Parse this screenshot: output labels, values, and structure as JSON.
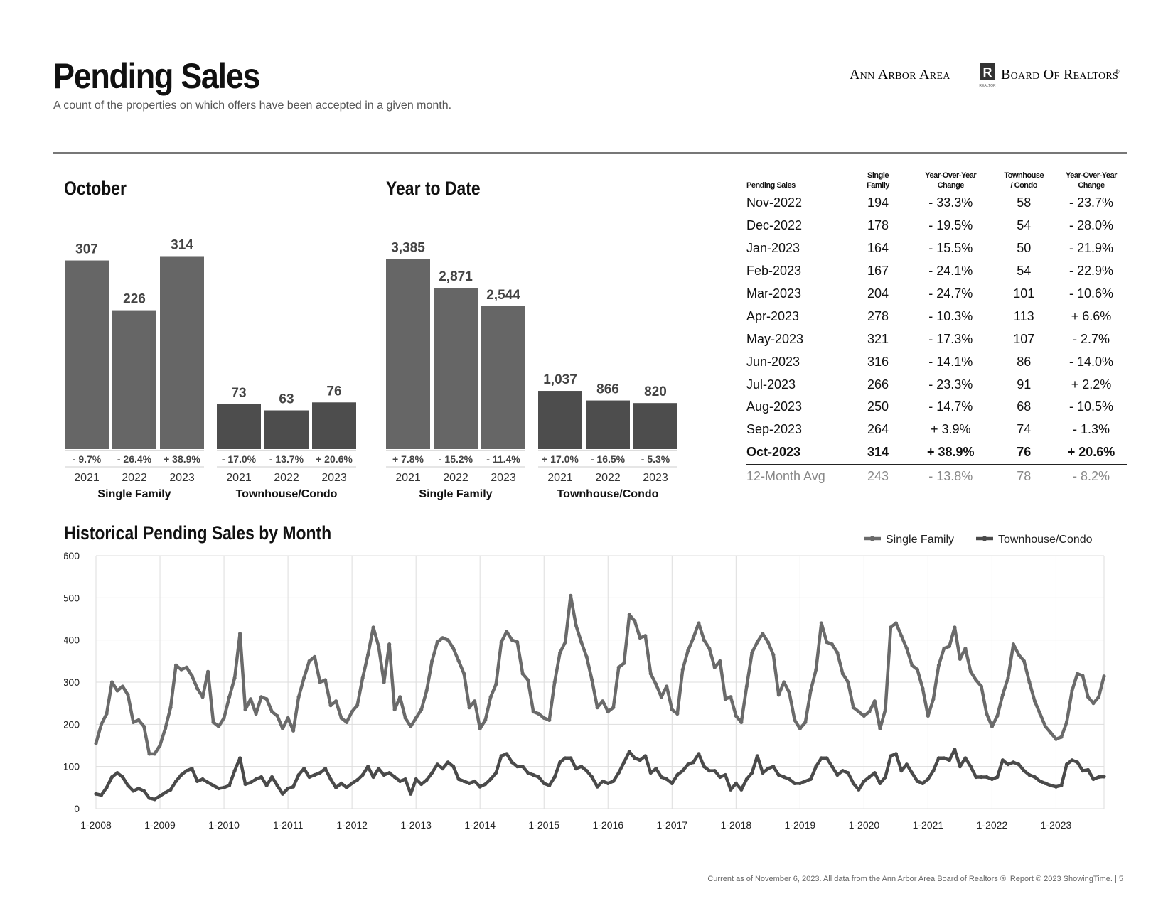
{
  "header": {
    "title": "Pending Sales",
    "subtitle": "A count of the properties on which offers have been accepted in a given month.",
    "logo_left": "Ann Arbor Area",
    "logo_right": "Board Of Realtors",
    "logo_reg": "®",
    "logo_mark": "R",
    "logo_mark_sub": "REALTOR"
  },
  "sections": {
    "october": "October",
    "ytd": "Year to Date",
    "historical": "Historical Pending Sales by Month"
  },
  "table": {
    "headers": {
      "c0": "Pending Sales",
      "c1a": "Single",
      "c1b": "Family",
      "c2a": "Year-Over-Year",
      "c2b": "Change",
      "c3a": "Townhouse",
      "c3b": "/ Condo",
      "c4a": "Year-Over-Year",
      "c4b": "Change"
    },
    "rows": [
      {
        "m": "Nov-2022",
        "sf": "194",
        "sfc": "- 33.3%",
        "tc": "58",
        "tcc": "- 23.7%"
      },
      {
        "m": "Dec-2022",
        "sf": "178",
        "sfc": "- 19.5%",
        "tc": "54",
        "tcc": "- 28.0%"
      },
      {
        "m": "Jan-2023",
        "sf": "164",
        "sfc": "- 15.5%",
        "tc": "50",
        "tcc": "- 21.9%"
      },
      {
        "m": "Feb-2023",
        "sf": "167",
        "sfc": "- 24.1%",
        "tc": "54",
        "tcc": "- 22.9%"
      },
      {
        "m": "Mar-2023",
        "sf": "204",
        "sfc": "- 24.7%",
        "tc": "101",
        "tcc": "- 10.6%"
      },
      {
        "m": "Apr-2023",
        "sf": "278",
        "sfc": "- 10.3%",
        "tc": "113",
        "tcc": "+ 6.6%"
      },
      {
        "m": "May-2023",
        "sf": "321",
        "sfc": "- 17.3%",
        "tc": "107",
        "tcc": "- 2.7%"
      },
      {
        "m": "Jun-2023",
        "sf": "316",
        "sfc": "- 14.1%",
        "tc": "86",
        "tcc": "- 14.0%"
      },
      {
        "m": "Jul-2023",
        "sf": "266",
        "sfc": "- 23.3%",
        "tc": "91",
        "tcc": "+ 2.2%"
      },
      {
        "m": "Aug-2023",
        "sf": "250",
        "sfc": "- 14.7%",
        "tc": "68",
        "tcc": "- 10.5%"
      },
      {
        "m": "Sep-2023",
        "sf": "264",
        "sfc": "+ 3.9%",
        "tc": "74",
        "tcc": "- 1.3%"
      },
      {
        "m": "Oct-2023",
        "sf": "314",
        "sfc": "+ 38.9%",
        "tc": "76",
        "tcc": "+ 20.6%"
      }
    ],
    "avg": {
      "m": "12-Month Avg",
      "sf": "243",
      "sfc": "- 13.8%",
      "tc": "78",
      "tcc": "- 8.2%"
    }
  },
  "footer": "Current as of November 6, 2023. All data from the Ann Arbor Area Board of Realtors ®| Report © 2023 ShowingTime.  |  5",
  "colors": {
    "sf_bar": "#666666",
    "tc_bar": "#4d4d4d",
    "line_sf": "#6a6a6a",
    "line_tc": "#4a4a4a",
    "grid": "#dddddd"
  },
  "chart_data": [
    {
      "type": "bar",
      "title": "October",
      "ylim": [
        0,
        340
      ],
      "groups": [
        {
          "name": "Single Family",
          "categories": [
            "2021",
            "2022",
            "2023"
          ],
          "values": [
            307,
            226,
            314
          ],
          "labels": [
            "307",
            "226",
            "314"
          ],
          "changes": [
            "- 9.7%",
            "- 26.4%",
            "+ 38.9%"
          ]
        },
        {
          "name": "Townhouse/Condo",
          "categories": [
            "2021",
            "2022",
            "2023"
          ],
          "values": [
            73,
            63,
            76
          ],
          "labels": [
            "73",
            "63",
            "76"
          ],
          "changes": [
            "- 17.0%",
            "- 13.7%",
            "+ 20.6%"
          ]
        }
      ]
    },
    {
      "type": "bar",
      "title": "Year to Date",
      "ylim": [
        0,
        3720
      ],
      "groups": [
        {
          "name": "Single Family",
          "categories": [
            "2021",
            "2022",
            "2023"
          ],
          "values": [
            3385,
            2871,
            2544
          ],
          "labels": [
            "3,385",
            "2,871",
            "2,544"
          ],
          "changes": [
            "+ 7.8%",
            "- 15.2%",
            "- 11.4%"
          ]
        },
        {
          "name": "Townhouse/Condo",
          "categories": [
            "2021",
            "2022",
            "2023"
          ],
          "values": [
            1037,
            866,
            820
          ],
          "labels": [
            "1,037",
            "866",
            "820"
          ],
          "changes": [
            "+ 17.0%",
            "- 16.5%",
            "- 5.3%"
          ]
        }
      ]
    },
    {
      "type": "line",
      "title": "Historical Pending Sales by Month",
      "x_start": "2008-01",
      "ylim": [
        0,
        600
      ],
      "yticks": [
        "0",
        "100",
        "200",
        "300",
        "400",
        "500",
        "600"
      ],
      "xticks": [
        "1-2008",
        "1-2009",
        "1-2010",
        "1-2011",
        "1-2012",
        "1-2013",
        "1-2014",
        "1-2015",
        "1-2016",
        "1-2017",
        "1-2018",
        "1-2019",
        "1-2020",
        "1-2021",
        "1-2022",
        "1-2023"
      ],
      "grid": true,
      "legend": "top-right",
      "series": [
        {
          "name": "Single Family",
          "values": [
            155,
            200,
            225,
            300,
            280,
            290,
            270,
            205,
            210,
            195,
            130,
            130,
            150,
            190,
            240,
            340,
            330,
            335,
            315,
            285,
            265,
            325,
            205,
            195,
            215,
            265,
            310,
            415,
            235,
            260,
            225,
            265,
            260,
            230,
            220,
            190,
            215,
            185,
            265,
            310,
            350,
            360,
            300,
            305,
            245,
            255,
            215,
            205,
            230,
            245,
            310,
            365,
            430,
            385,
            300,
            390,
            235,
            265,
            215,
            195,
            215,
            235,
            280,
            350,
            395,
            405,
            400,
            380,
            350,
            320,
            240,
            255,
            190,
            210,
            265,
            295,
            395,
            420,
            400,
            395,
            320,
            305,
            230,
            225,
            215,
            210,
            300,
            370,
            395,
            505,
            435,
            395,
            360,
            305,
            240,
            255,
            230,
            240,
            335,
            345,
            460,
            445,
            405,
            410,
            320,
            295,
            265,
            290,
            235,
            225,
            330,
            375,
            405,
            440,
            400,
            380,
            335,
            350,
            260,
            265,
            220,
            205,
            290,
            370,
            395,
            415,
            395,
            365,
            270,
            300,
            275,
            210,
            190,
            205,
            280,
            330,
            440,
            395,
            390,
            370,
            320,
            300,
            240,
            230,
            220,
            230,
            255,
            190,
            235,
            430,
            440,
            410,
            380,
            340,
            330,
            285,
            220,
            260,
            340,
            380,
            385,
            430,
            355,
            380,
            325,
            305,
            290,
            225,
            195,
            220,
            270,
            310,
            390,
            365,
            350,
            300,
            255,
            225,
            195,
            180,
            165,
            170,
            205,
            280,
            320,
            315,
            265,
            250,
            265,
            314
          ]
        },
        {
          "name": "Townhouse/Condo",
          "values": [
            35,
            32,
            50,
            75,
            85,
            75,
            55,
            42,
            48,
            42,
            25,
            22,
            30,
            38,
            45,
            65,
            80,
            90,
            95,
            65,
            70,
            62,
            55,
            48,
            50,
            55,
            90,
            120,
            58,
            62,
            70,
            75,
            55,
            75,
            55,
            35,
            48,
            52,
            80,
            95,
            75,
            80,
            85,
            95,
            70,
            50,
            60,
            50,
            60,
            68,
            80,
            100,
            75,
            95,
            80,
            85,
            75,
            65,
            70,
            35,
            70,
            58,
            68,
            85,
            105,
            95,
            110,
            100,
            70,
            65,
            60,
            65,
            52,
            58,
            70,
            85,
            125,
            130,
            110,
            100,
            100,
            85,
            80,
            75,
            60,
            55,
            75,
            110,
            120,
            120,
            95,
            100,
            90,
            75,
            52,
            65,
            60,
            65,
            85,
            110,
            135,
            120,
            115,
            125,
            85,
            95,
            75,
            70,
            60,
            80,
            90,
            105,
            110,
            130,
            100,
            90,
            90,
            75,
            80,
            45,
            60,
            45,
            70,
            85,
            125,
            85,
            95,
            100,
            80,
            75,
            70,
            60,
            60,
            65,
            70,
            100,
            120,
            120,
            100,
            80,
            90,
            85,
            60,
            45,
            65,
            75,
            85,
            60,
            75,
            125,
            130,
            90,
            105,
            85,
            65,
            60,
            70,
            90,
            120,
            120,
            115,
            140,
            100,
            120,
            100,
            75,
            75,
            75,
            70,
            75,
            115,
            105,
            110,
            105,
            90,
            80,
            75,
            65,
            60,
            55,
            52,
            55,
            105,
            115,
            110,
            90,
            92,
            70,
            75,
            76
          ]
        }
      ]
    }
  ]
}
